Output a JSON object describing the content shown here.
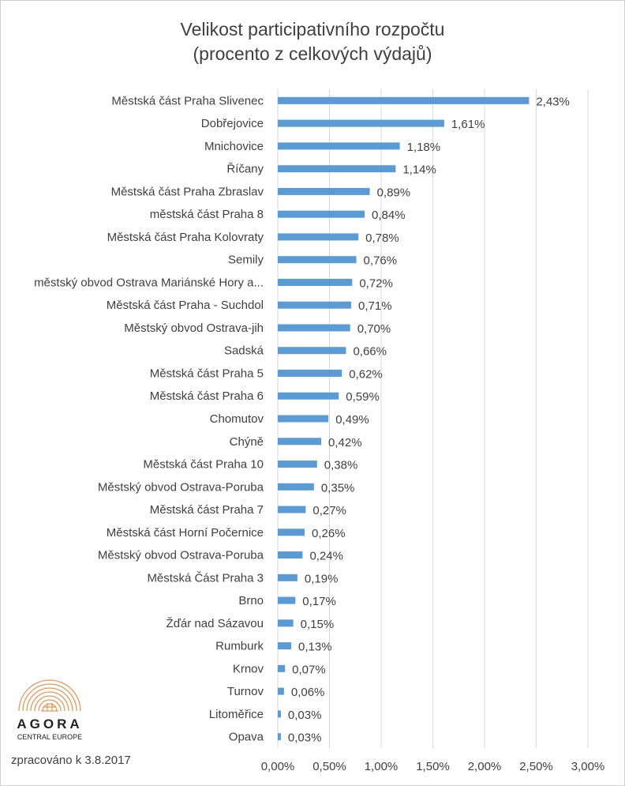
{
  "title_line1": "Velikost participativního rozpočtu",
  "title_line2": "(procento  z celkových výdajů)",
  "footer_note": "zpracováno k 3.8.2017",
  "logo": {
    "name": "AGORA",
    "subtitle": "CENTRAL EUROPE"
  },
  "colors": {
    "bar": "#5b9bd5",
    "grid": "#d9d9d9",
    "text": "#404040",
    "logo": "#e8975a"
  },
  "chart_data": {
    "type": "bar",
    "orientation": "horizontal",
    "title": "Velikost participativního rozpočtu (procento  z celkových výdajů)",
    "categories": [
      "Městská část Praha Slivenec",
      "Dobřejovice",
      "Mnichovice",
      "Říčany",
      "Městská část Praha Zbraslav",
      "městská část Praha 8",
      "Městská část Praha Kolovraty",
      "Semily",
      "městský obvod Ostrava Mariánské Hory  a...",
      "Městská část Praha - Suchdol",
      "Městský obvod Ostrava-jih",
      "Sadská",
      "Městská část Praha 5",
      "Městská část Praha 6",
      "Chomutov",
      "Chýně",
      "Městská část Praha 10",
      "Městský obvod Ostrava-Poruba",
      "Městská část Praha 7",
      "Městská část Horní Počernice",
      "Městský obvod Ostrava-Poruba",
      "Městská Část Praha 3",
      "Brno",
      "Žďár nad Sázavou",
      "Rumburk",
      "Krnov",
      "Turnov",
      "Litoměřice",
      "Opava"
    ],
    "values": [
      2.43,
      1.61,
      1.18,
      1.14,
      0.89,
      0.84,
      0.78,
      0.76,
      0.72,
      0.71,
      0.7,
      0.66,
      0.62,
      0.59,
      0.49,
      0.42,
      0.38,
      0.35,
      0.27,
      0.26,
      0.24,
      0.19,
      0.17,
      0.15,
      0.13,
      0.07,
      0.06,
      0.03,
      0.03
    ],
    "data_labels": [
      "2,43%",
      "1,61%",
      "1,18%",
      "1,14%",
      "0,89%",
      "0,84%",
      "0,78%",
      "0,76%",
      "0,72%",
      "0,71%",
      "0,70%",
      "0,66%",
      "0,62%",
      "0,59%",
      "0,49%",
      "0,42%",
      "0,38%",
      "0,35%",
      "0,27%",
      "0,26%",
      "0,24%",
      "0,19%",
      "0,17%",
      "0,15%",
      "0,13%",
      "0,07%",
      "0,06%",
      "0,03%",
      "0,03%"
    ],
    "xlim": [
      0,
      3.0
    ],
    "x_ticks": [
      0,
      0.5,
      1.0,
      1.5,
      2.0,
      2.5,
      3.0
    ],
    "x_tick_labels": [
      "0,00%",
      "0,50%",
      "1,00%",
      "1,50%",
      "2,00%",
      "2,50%",
      "3,00%"
    ],
    "unit": "%",
    "grid": "vertical",
    "legend": "none"
  }
}
